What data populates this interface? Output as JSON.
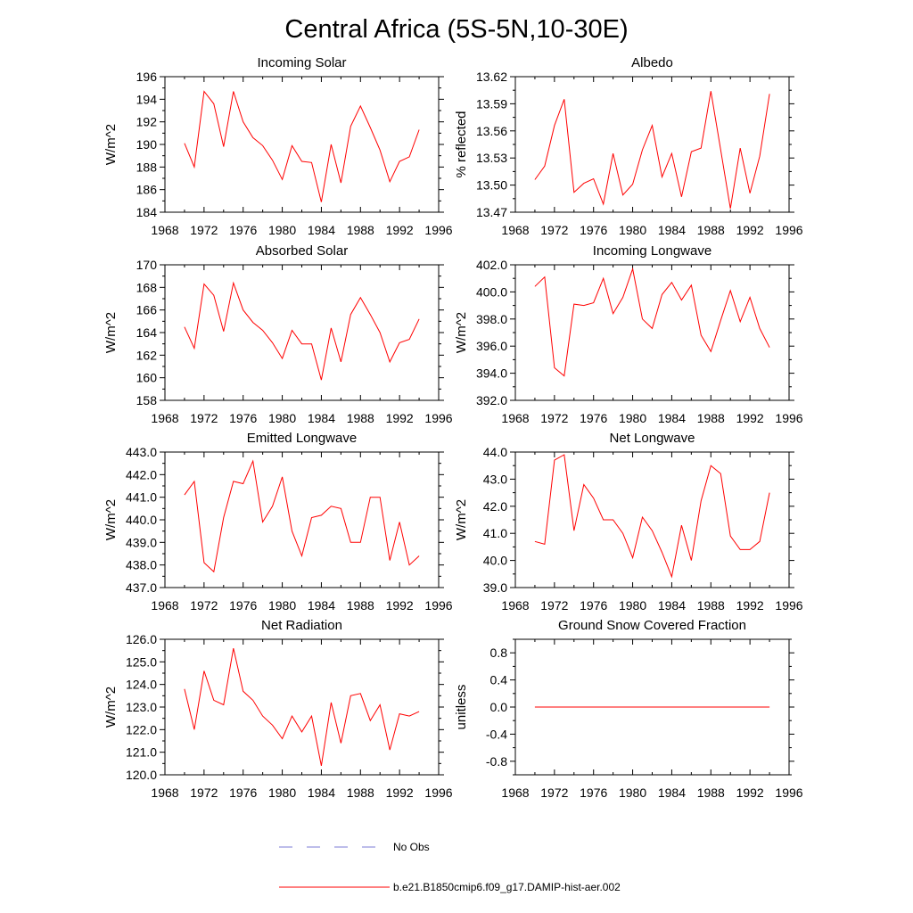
{
  "figure": {
    "title": "Central Africa (5S-5N,10-30E)"
  },
  "colors": {
    "model_line": "#ff0000",
    "obs_line": "#7b7bd6",
    "axes": "#000000"
  },
  "legend": [
    {
      "label": "No Obs",
      "style": "dashed",
      "color": "#7b7bd6"
    },
    {
      "label": "b.e21.B1850cmip6.f09_g17.DAMIP-hist-aer.002",
      "style": "solid",
      "color": "#ff0000"
    }
  ],
  "chart_data": [
    {
      "type": "line",
      "title": "Incoming Solar",
      "ylabel": "W/m^2",
      "xlim": [
        1968,
        1996
      ],
      "ylim": [
        184,
        196
      ],
      "xticks": [
        1968,
        1972,
        1976,
        1980,
        1984,
        1988,
        1992,
        1996
      ],
      "xtick_labels": [
        "1968",
        "1972",
        "1976",
        "1980",
        "1984",
        "1988",
        "1992",
        "1996"
      ],
      "yticks": [
        184,
        186,
        188,
        190,
        192,
        194,
        196
      ],
      "ytick_labels": [
        "184",
        "186",
        "188",
        "190",
        "192",
        "194",
        "196"
      ],
      "x": [
        1970,
        1971,
        1972,
        1973,
        1974,
        1975,
        1976,
        1977,
        1978,
        1979,
        1980,
        1981,
        1982,
        1983,
        1984,
        1985,
        1986,
        1987,
        1988,
        1989,
        1990,
        1991,
        1992,
        1993,
        1994
      ],
      "series": [
        {
          "values": [
            190.1,
            188.0,
            194.7,
            193.6,
            189.8,
            194.7,
            192.0,
            190.6,
            189.9,
            188.6,
            186.9,
            189.9,
            188.5,
            188.4,
            184.9,
            190.0,
            186.6,
            191.6,
            193.4,
            191.5,
            189.5,
            186.7,
            188.5,
            188.9,
            191.3
          ]
        }
      ]
    },
    {
      "type": "line",
      "title": "Albedo",
      "ylabel": "% reflected",
      "xlim": [
        1968,
        1996
      ],
      "ylim": [
        13.47,
        13.62
      ],
      "xticks": [
        1968,
        1972,
        1976,
        1980,
        1984,
        1988,
        1992,
        1996
      ],
      "xtick_labels": [
        "1968",
        "1972",
        "1976",
        "1980",
        "1984",
        "1988",
        "1992",
        "1996"
      ],
      "yticks": [
        13.47,
        13.5,
        13.53,
        13.56,
        13.59,
        13.62
      ],
      "ytick_labels": [
        "13.47",
        "13.50",
        "13.53",
        "13.56",
        "13.59",
        "13.62"
      ],
      "x": [
        1970,
        1971,
        1972,
        1973,
        1974,
        1975,
        1976,
        1977,
        1978,
        1979,
        1980,
        1981,
        1982,
        1983,
        1984,
        1985,
        1986,
        1987,
        1988,
        1989,
        1990,
        1991,
        1992,
        1993,
        1994
      ],
      "series": [
        {
          "values": [
            13.506,
            13.521,
            13.566,
            13.595,
            13.492,
            13.502,
            13.507,
            13.479,
            13.535,
            13.489,
            13.501,
            13.539,
            13.566,
            13.509,
            13.535,
            13.487,
            13.537,
            13.541,
            13.604,
            13.539,
            13.474,
            13.541,
            13.491,
            13.532,
            13.601
          ]
        }
      ]
    },
    {
      "type": "line",
      "title": "Absorbed Solar",
      "ylabel": "W/m^2",
      "xlim": [
        1968,
        1996
      ],
      "ylim": [
        158,
        170
      ],
      "xticks": [
        1968,
        1972,
        1976,
        1980,
        1984,
        1988,
        1992,
        1996
      ],
      "xtick_labels": [
        "1968",
        "1972",
        "1976",
        "1980",
        "1984",
        "1988",
        "1992",
        "1996"
      ],
      "yticks": [
        158,
        160,
        162,
        164,
        166,
        168,
        170
      ],
      "ytick_labels": [
        "158",
        "160",
        "162",
        "164",
        "166",
        "168",
        "170"
      ],
      "x": [
        1970,
        1971,
        1972,
        1973,
        1974,
        1975,
        1976,
        1977,
        1978,
        1979,
        1980,
        1981,
        1982,
        1983,
        1984,
        1985,
        1986,
        1987,
        1988,
        1989,
        1990,
        1991,
        1992,
        1993,
        1994
      ],
      "series": [
        {
          "values": [
            164.5,
            162.6,
            168.3,
            167.3,
            164.1,
            168.4,
            166.0,
            164.9,
            164.2,
            163.1,
            161.7,
            164.2,
            163.0,
            163.0,
            159.8,
            164.4,
            161.4,
            165.6,
            167.1,
            165.6,
            164.0,
            161.4,
            163.1,
            163.4,
            165.2
          ]
        }
      ]
    },
    {
      "type": "line",
      "title": "Incoming Longwave",
      "ylabel": "W/m^2",
      "xlim": [
        1968,
        1996
      ],
      "ylim": [
        392,
        402
      ],
      "xticks": [
        1968,
        1972,
        1976,
        1980,
        1984,
        1988,
        1992,
        1996
      ],
      "xtick_labels": [
        "1968",
        "1972",
        "1976",
        "1980",
        "1984",
        "1988",
        "1992",
        "1996"
      ],
      "yticks": [
        392,
        394,
        396,
        398,
        400,
        402
      ],
      "ytick_labels": [
        "392.0",
        "394.0",
        "396.0",
        "398.0",
        "400.0",
        "402.0"
      ],
      "x": [
        1970,
        1971,
        1972,
        1973,
        1974,
        1975,
        1976,
        1977,
        1978,
        1979,
        1980,
        1981,
        1982,
        1983,
        1984,
        1985,
        1986,
        1987,
        1988,
        1989,
        1990,
        1991,
        1992,
        1993,
        1994
      ],
      "series": [
        {
          "values": [
            400.4,
            401.1,
            394.4,
            393.8,
            399.1,
            399.0,
            399.2,
            401.0,
            398.4,
            399.6,
            401.7,
            398.0,
            397.3,
            399.8,
            400.7,
            399.4,
            400.5,
            396.8,
            395.6,
            397.9,
            400.1,
            397.8,
            399.6,
            397.3,
            395.9
          ]
        }
      ]
    },
    {
      "type": "line",
      "title": "Emitted Longwave",
      "ylabel": "W/m^2",
      "xlim": [
        1968,
        1996
      ],
      "ylim": [
        437,
        443
      ],
      "xticks": [
        1968,
        1972,
        1976,
        1980,
        1984,
        1988,
        1992,
        1996
      ],
      "xtick_labels": [
        "1968",
        "1972",
        "1976",
        "1980",
        "1984",
        "1988",
        "1992",
        "1996"
      ],
      "yticks": [
        437,
        438,
        439,
        440,
        441,
        442,
        443
      ],
      "ytick_labels": [
        "437.0",
        "438.0",
        "439.0",
        "440.0",
        "441.0",
        "442.0",
        "443.0"
      ],
      "x": [
        1970,
        1971,
        1972,
        1973,
        1974,
        1975,
        1976,
        1977,
        1978,
        1979,
        1980,
        1981,
        1982,
        1983,
        1984,
        1985,
        1986,
        1987,
        1988,
        1989,
        1990,
        1991,
        1992,
        1993,
        1994
      ],
      "series": [
        {
          "values": [
            441.1,
            441.7,
            438.1,
            437.7,
            440.1,
            441.7,
            441.6,
            442.6,
            439.9,
            440.6,
            441.9,
            439.5,
            438.4,
            440.1,
            440.2,
            440.6,
            440.5,
            439.0,
            439.0,
            441.0,
            441.0,
            438.2,
            439.9,
            438.0,
            438.4
          ]
        }
      ]
    },
    {
      "type": "line",
      "title": "Net Longwave",
      "ylabel": "W/m^2",
      "xlim": [
        1968,
        1996
      ],
      "ylim": [
        39,
        44
      ],
      "xticks": [
        1968,
        1972,
        1976,
        1980,
        1984,
        1988,
        1992,
        1996
      ],
      "xtick_labels": [
        "1968",
        "1972",
        "1976",
        "1980",
        "1984",
        "1988",
        "1992",
        "1996"
      ],
      "yticks": [
        39,
        40,
        41,
        42,
        43,
        44
      ],
      "ytick_labels": [
        "39.0",
        "40.0",
        "41.0",
        "42.0",
        "43.0",
        "44.0"
      ],
      "x": [
        1970,
        1971,
        1972,
        1973,
        1974,
        1975,
        1976,
        1977,
        1978,
        1979,
        1980,
        1981,
        1982,
        1983,
        1984,
        1985,
        1986,
        1987,
        1988,
        1989,
        1990,
        1991,
        1992,
        1993,
        1994
      ],
      "series": [
        {
          "values": [
            40.7,
            40.6,
            43.7,
            43.9,
            41.1,
            42.8,
            42.3,
            41.5,
            41.5,
            41.0,
            40.1,
            41.6,
            41.1,
            40.3,
            39.4,
            41.3,
            40.0,
            42.2,
            43.5,
            43.2,
            40.9,
            40.4,
            40.4,
            40.7,
            42.5
          ]
        }
      ]
    },
    {
      "type": "line",
      "title": "Net Radiation",
      "ylabel": "W/m^2",
      "xlim": [
        1968,
        1996
      ],
      "ylim": [
        120,
        126
      ],
      "xticks": [
        1968,
        1972,
        1976,
        1980,
        1984,
        1988,
        1992,
        1996
      ],
      "xtick_labels": [
        "1968",
        "1972",
        "1976",
        "1980",
        "1984",
        "1988",
        "1992",
        "1996"
      ],
      "yticks": [
        120,
        121,
        122,
        123,
        124,
        125,
        126
      ],
      "ytick_labels": [
        "120.0",
        "121.0",
        "122.0",
        "123.0",
        "124.0",
        "125.0",
        "126.0"
      ],
      "x": [
        1970,
        1971,
        1972,
        1973,
        1974,
        1975,
        1976,
        1977,
        1978,
        1979,
        1980,
        1981,
        1982,
        1983,
        1984,
        1985,
        1986,
        1987,
        1988,
        1989,
        1990,
        1991,
        1992,
        1993,
        1994
      ],
      "series": [
        {
          "values": [
            123.8,
            122.0,
            124.6,
            123.3,
            123.1,
            125.6,
            123.7,
            123.3,
            122.6,
            122.2,
            121.6,
            122.6,
            121.9,
            122.6,
            120.4,
            123.2,
            121.4,
            123.5,
            123.6,
            122.4,
            123.1,
            121.1,
            122.7,
            122.6,
            122.8
          ]
        }
      ]
    },
    {
      "type": "line",
      "title": "Ground Snow Covered Fraction",
      "ylabel": "unitless",
      "xlim": [
        1968,
        1996
      ],
      "ylim": [
        -1.0,
        1.0
      ],
      "xticks": [
        1968,
        1972,
        1976,
        1980,
        1984,
        1988,
        1992,
        1996
      ],
      "xtick_labels": [
        "1968",
        "1972",
        "1976",
        "1980",
        "1984",
        "1988",
        "1992",
        "1996"
      ],
      "yticks": [
        -0.8,
        -0.4,
        0.0,
        0.4,
        0.8
      ],
      "ytick_labels": [
        "-0.8",
        "-0.4",
        "0.0",
        "0.4",
        "0.8"
      ],
      "x": [
        1970,
        1971,
        1972,
        1973,
        1974,
        1975,
        1976,
        1977,
        1978,
        1979,
        1980,
        1981,
        1982,
        1983,
        1984,
        1985,
        1986,
        1987,
        1988,
        1989,
        1990,
        1991,
        1992,
        1993,
        1994
      ],
      "series": [
        {
          "values": [
            0,
            0,
            0,
            0,
            0,
            0,
            0,
            0,
            0,
            0,
            0,
            0,
            0,
            0,
            0,
            0,
            0,
            0,
            0,
            0,
            0,
            0,
            0,
            0,
            0
          ]
        }
      ]
    }
  ]
}
